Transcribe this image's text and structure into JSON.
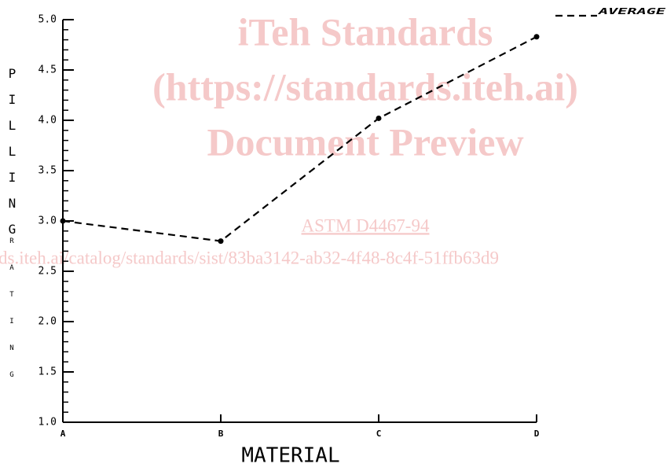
{
  "chart_data": {
    "type": "line",
    "y_label_1": "PILLING",
    "y_label_2": "RATING",
    "x_label": "MATERIAL",
    "categories": [
      "A",
      "B",
      "C",
      "D"
    ],
    "series": [
      {
        "name": "AVERAGE",
        "color": "#000000",
        "values": [
          3.0,
          2.8,
          4.02,
          4.83
        ]
      }
    ],
    "ylim": [
      1.0,
      5.0
    ],
    "yticks": [
      {
        "value": 1.0,
        "label": "1.0"
      },
      1.5,
      {
        "value": 2.0,
        "label": "2.0"
      },
      2.5,
      {
        "value": 3.0,
        "label": "3.0"
      },
      3.5,
      {
        "value": 4.0,
        "label": "4.0"
      },
      4.5,
      {
        "value": 5.0,
        "label": "5.0"
      }
    ],
    "minor_yticks": [
      1.1,
      1.2,
      1.3,
      1.4,
      1.6,
      1.7,
      1.8,
      1.9,
      2.1,
      2.2,
      2.3,
      2.4,
      2.6,
      2.7,
      2.8,
      2.9,
      3.1,
      3.2,
      3.3,
      3.4,
      3.6,
      3.7,
      3.8,
      3.9,
      4.1,
      4.2,
      4.3,
      4.4,
      4.6,
      4.7,
      4.8,
      4.9
    ],
    "legend": "top-right"
  },
  "watermark": {
    "line1": "iTeh Standards",
    "line2": "(https://standards.iteh.ai)",
    "line3": "Document Preview",
    "standard": "ASTM D4467-94",
    "url": "ds.iteh.ai/catalog/standards/sist/83ba3142-ab32-4f48-8c4f-51ffb63d9"
  }
}
